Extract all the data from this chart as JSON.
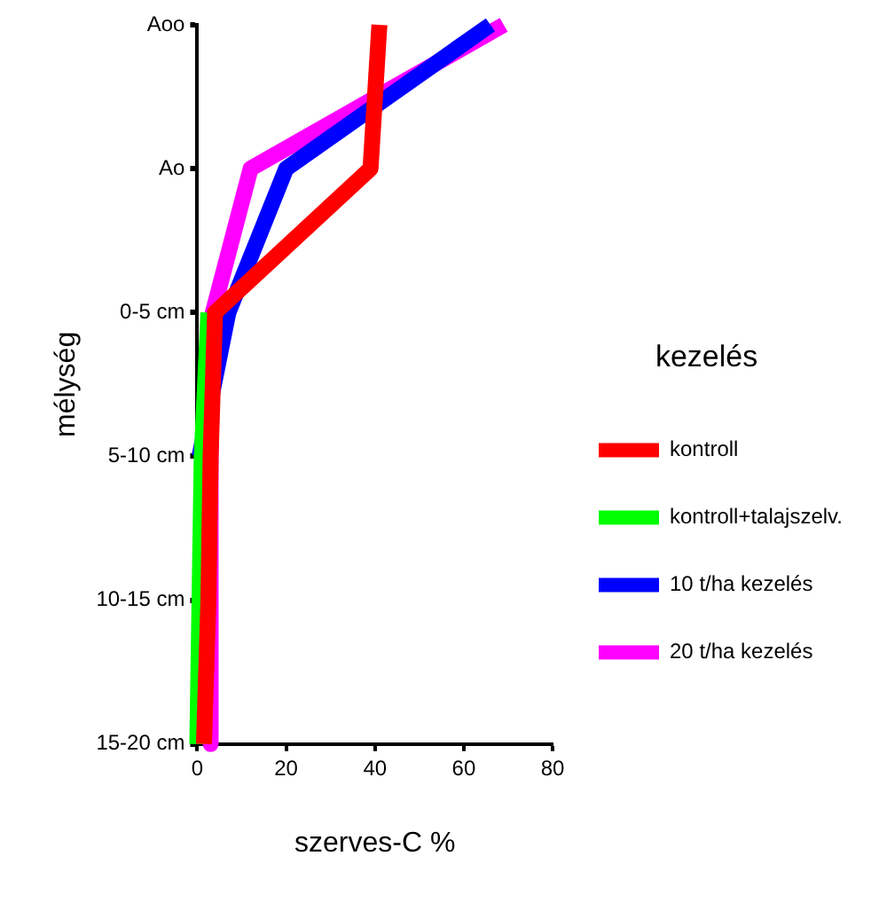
{
  "chart_data": {
    "type": "line",
    "orientation": "horizontal",
    "xlabel": "szerves-C %",
    "ylabel": "mélység",
    "legend_title": "kezelés",
    "legend": "right",
    "grid": false,
    "marker": "none",
    "line_style": "solid",
    "categories": [
      "Aoo",
      "Ao",
      "0-5 cm",
      "5-10 cm",
      "10-15 cm",
      "15-20 cm"
    ],
    "xlim": [
      0,
      80
    ],
    "xticks": [
      0,
      20,
      40,
      60,
      80
    ],
    "series": [
      {
        "name": "kontroll",
        "color": "#ff0000",
        "values": [
          41,
          39,
          4,
          3,
          2.5,
          1.5
        ]
      },
      {
        "name": "kontroll+talajszelv.",
        "color": "#00ff00",
        "values": [
          null,
          null,
          2.5,
          1,
          0.5,
          0
        ]
      },
      {
        "name": "10 t/ha kezelés",
        "color": "#0000ff",
        "values": [
          66,
          20,
          7,
          0.5,
          null,
          null
        ]
      },
      {
        "name": "20 t/ha kezelés",
        "color": "#ff00ff",
        "values": [
          69,
          12,
          3.5,
          3,
          3,
          3
        ]
      }
    ]
  }
}
